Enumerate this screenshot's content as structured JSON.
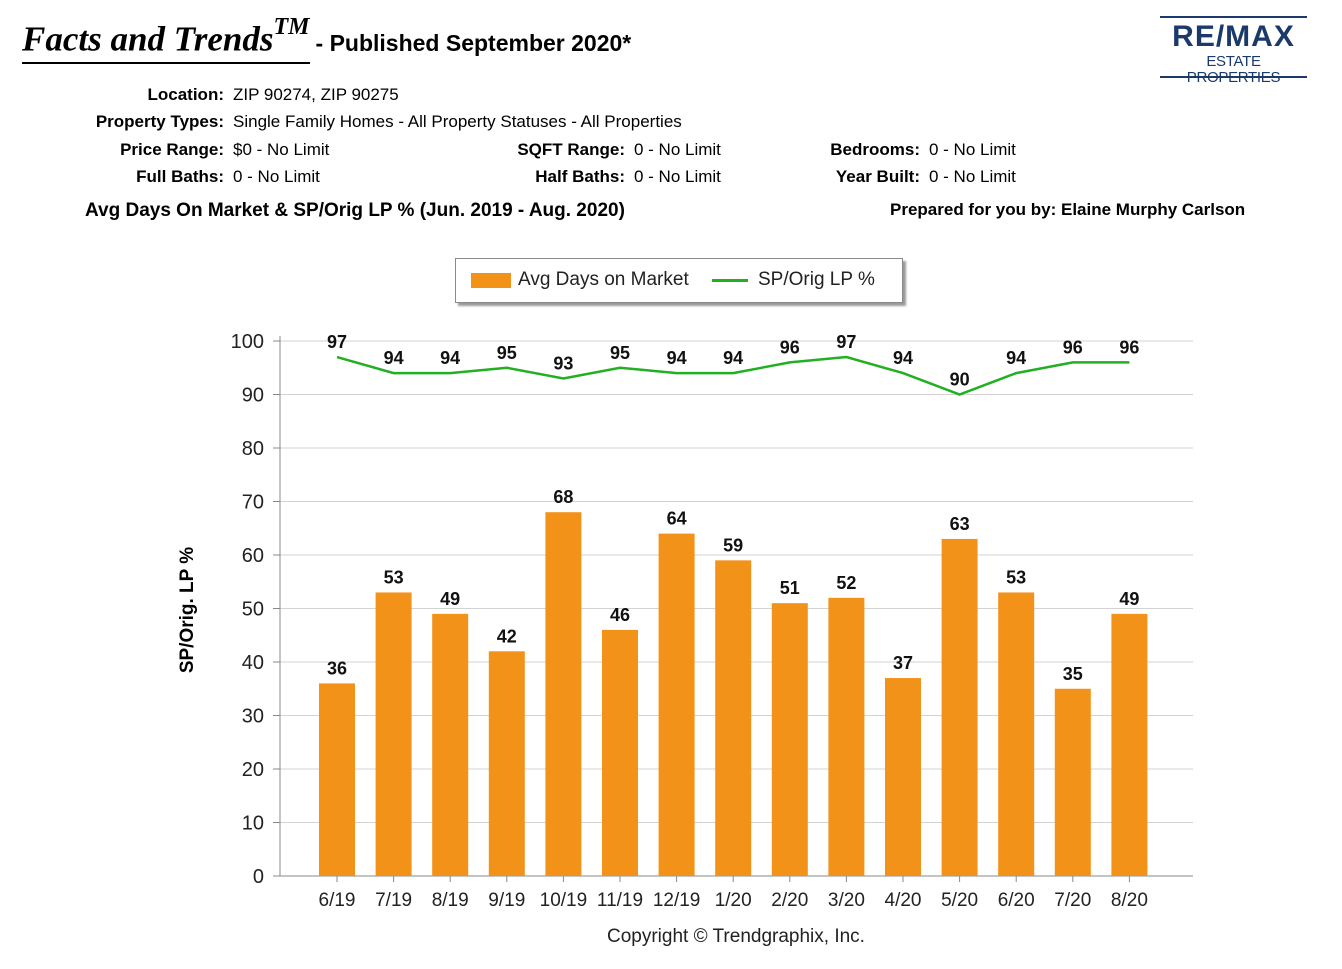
{
  "header": {
    "title": "Facts and Trends",
    "title_mark": "TM",
    "published": "- Published September 2020*",
    "logo_main": "RE/MAX",
    "logo_sub": "ESTATE PROPERTIES"
  },
  "filters": {
    "location_label": "Location:",
    "location_value": "ZIP 90274, ZIP 90275",
    "property_types_label": "Property Types:",
    "property_types_value": "Single Family Homes - All Property Statuses - All Properties",
    "price_range_label": "Price Range:",
    "price_range_value": "$0 - No Limit",
    "sqft_range_label": "SQFT Range:",
    "sqft_range_value": "0 - No Limit",
    "bedrooms_label": "Bedrooms:",
    "bedrooms_value": "0 - No Limit",
    "full_baths_label": "Full Baths:",
    "full_baths_value": "0 - No Limit",
    "half_baths_label": "Half Baths:",
    "half_baths_value": "0 - No Limit",
    "year_built_label": "Year Built:",
    "year_built_value": "0 - No Limit"
  },
  "subheading": "Avg Days On Market & SP/Orig LP % (Jun. 2019 - Aug. 2020)",
  "prepared_by": "Prepared for you by: Elaine Murphy Carlson",
  "copyright": "Copyright © Trendgraphix, Inc.",
  "chart_data": {
    "type": "bar",
    "ylabel": "SP/Orig. LP %",
    "xlabel": "",
    "ylim": [
      0,
      100
    ],
    "yticks": [
      0,
      10,
      20,
      30,
      40,
      50,
      60,
      70,
      80,
      90,
      100
    ],
    "grid": true,
    "legend_position": "top-center",
    "categories": [
      "6/19",
      "7/19",
      "8/19",
      "9/19",
      "10/19",
      "11/19",
      "12/19",
      "1/20",
      "2/20",
      "3/20",
      "4/20",
      "5/20",
      "6/20",
      "7/20",
      "8/20"
    ],
    "series": [
      {
        "name": "Avg Days on Market",
        "type": "bar",
        "color": "#f39219",
        "values": [
          36,
          53,
          49,
          42,
          68,
          46,
          64,
          59,
          51,
          52,
          37,
          63,
          53,
          35,
          49
        ]
      },
      {
        "name": "SP/Orig LP %",
        "type": "line",
        "color": "#22b022",
        "values": [
          97,
          94,
          94,
          95,
          93,
          95,
          94,
          94,
          96,
          97,
          94,
          90,
          94,
          96,
          96
        ]
      }
    ]
  }
}
